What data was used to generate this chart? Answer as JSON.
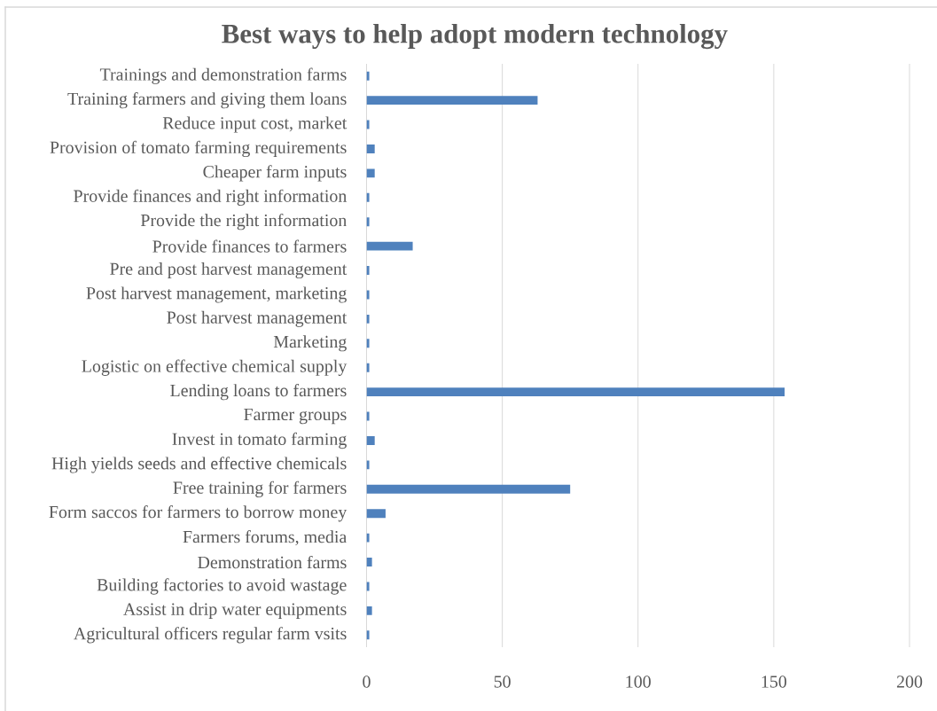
{
  "chart_data": {
    "type": "bar",
    "orientation": "horizontal",
    "title": "Best ways to help adopt modern technology",
    "categories": [
      "Trainings and demonstration farms",
      "Training farmers and giving them loans",
      "Reduce input cost, market",
      "Provision of tomato farming requirements",
      "Cheaper farm inputs",
      "Provide finances and right information",
      "Provide the right information",
      "Provide finances to farmers",
      "Pre and post harvest management",
      "Post harvest management, marketing",
      "Post harvest management",
      "Marketing",
      "Logistic on effective chemical supply",
      "Lending loans to farmers",
      "Farmer groups",
      "Invest in tomato farming",
      "High yields seeds and effective chemicals",
      "Free training for farmers",
      "Form saccos for farmers to borrow money",
      "Farmers forums, media",
      "Demonstration farms",
      "Building factories to avoid wastage",
      "Assist in drip water equipments",
      "Agricultural officers regular farm vsits"
    ],
    "values": [
      1,
      63,
      1,
      3,
      3,
      1,
      1,
      17,
      1,
      1,
      1,
      1,
      1,
      154,
      1,
      3,
      1,
      75,
      7,
      1,
      2,
      1,
      2,
      1
    ],
    "color": "#4f81bd",
    "xlim": [
      0,
      200
    ],
    "xticks": [
      0,
      50,
      100,
      150,
      200
    ],
    "grid": "x"
  }
}
